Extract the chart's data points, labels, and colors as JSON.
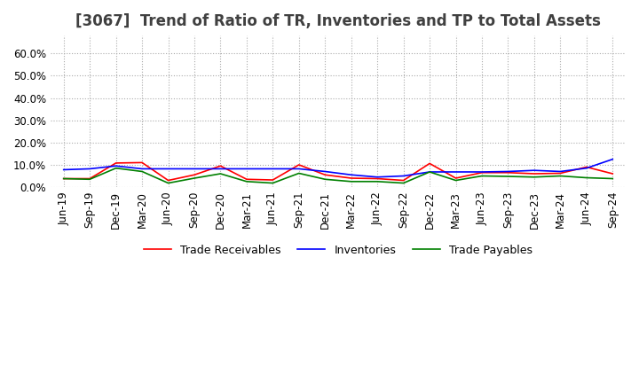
{
  "title": "[3067]  Trend of Ratio of TR, Inventories and TP to Total Assets",
  "ylim": [
    0.0,
    0.68
  ],
  "yticks": [
    0.0,
    0.1,
    0.2,
    0.3,
    0.4,
    0.5,
    0.6
  ],
  "x_labels": [
    "Jun-19",
    "Sep-19",
    "Dec-19",
    "Mar-20",
    "Jun-20",
    "Sep-20",
    "Dec-20",
    "Mar-21",
    "Jun-21",
    "Sep-21",
    "Dec-21",
    "Mar-22",
    "Jun-22",
    "Sep-22",
    "Dec-22",
    "Mar-23",
    "Jun-23",
    "Sep-23",
    "Dec-23",
    "Mar-24",
    "Jun-24",
    "Sep-24"
  ],
  "trade_receivables": [
    0.038,
    0.038,
    0.108,
    0.11,
    0.03,
    0.055,
    0.095,
    0.035,
    0.032,
    0.1,
    0.055,
    0.04,
    0.038,
    0.03,
    0.106,
    0.04,
    0.065,
    0.065,
    0.06,
    0.062,
    0.09,
    0.06
  ],
  "inventories": [
    0.078,
    0.082,
    0.095,
    0.082,
    0.082,
    0.082,
    0.082,
    0.082,
    0.082,
    0.082,
    0.07,
    0.055,
    0.045,
    0.05,
    0.068,
    0.068,
    0.068,
    0.07,
    0.075,
    0.07,
    0.085,
    0.125
  ],
  "trade_payables": [
    0.038,
    0.035,
    0.085,
    0.07,
    0.018,
    0.04,
    0.06,
    0.025,
    0.018,
    0.062,
    0.035,
    0.025,
    0.025,
    0.018,
    0.068,
    0.03,
    0.05,
    0.048,
    0.045,
    0.05,
    0.042,
    0.038
  ],
  "colors": {
    "trade_receivables": "#FF0000",
    "inventories": "#0000FF",
    "trade_payables": "#008000"
  },
  "background_color": "#FFFFFF",
  "plot_background": "#FFFFFF",
  "grid_color": "#AAAAAA",
  "title_color": "#404040",
  "title_fontsize": 12,
  "tick_fontsize": 8.5,
  "legend_fontsize": 9
}
